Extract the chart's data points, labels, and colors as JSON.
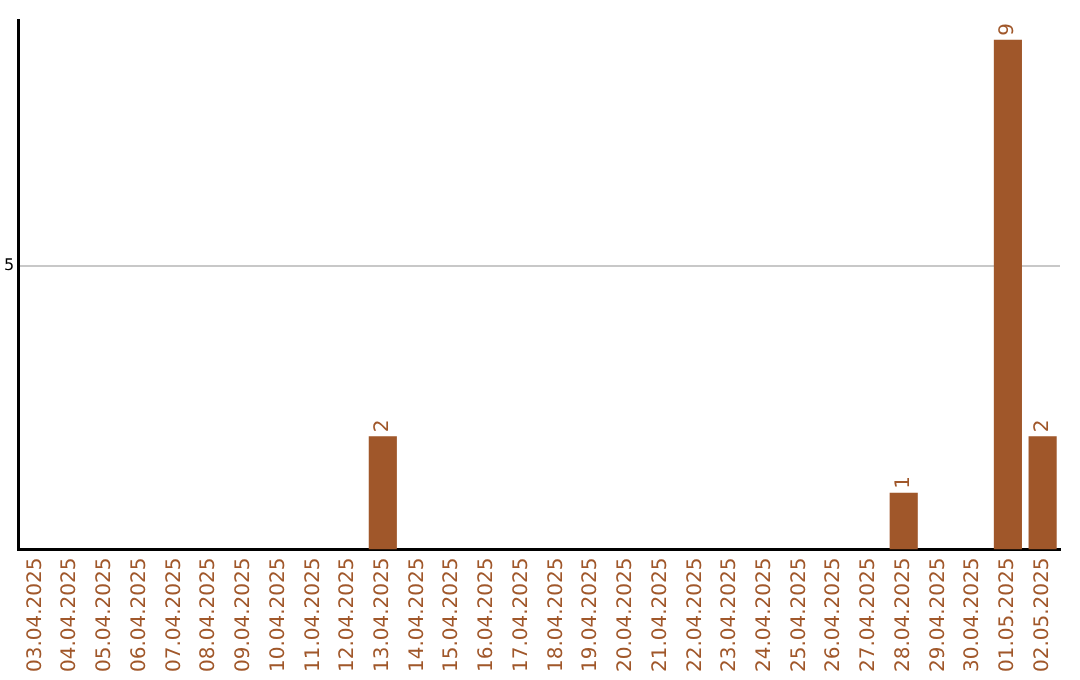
{
  "chart_data": {
    "type": "bar",
    "categories": [
      "03.04.2025",
      "04.04.2025",
      "05.04.2025",
      "06.04.2025",
      "07.04.2025",
      "08.04.2025",
      "09.04.2025",
      "10.04.2025",
      "11.04.2025",
      "12.04.2025",
      "13.04.2025",
      "14.04.2025",
      "15.04.2025",
      "16.04.2025",
      "17.04.2025",
      "18.04.2025",
      "19.04.2025",
      "20.04.2025",
      "21.04.2025",
      "22.04.2025",
      "23.04.2025",
      "24.04.2025",
      "25.04.2025",
      "26.04.2025",
      "27.04.2025",
      "28.04.2025",
      "29.04.2025",
      "30.04.2025",
      "01.05.2025",
      "02.05.2025"
    ],
    "values": [
      0,
      0,
      0,
      0,
      0,
      0,
      0,
      0,
      0,
      0,
      2,
      0,
      0,
      0,
      0,
      0,
      0,
      0,
      0,
      0,
      0,
      0,
      0,
      0,
      0,
      1,
      0,
      0,
      9,
      2
    ],
    "value_labels": [
      null,
      null,
      null,
      null,
      null,
      null,
      null,
      null,
      null,
      null,
      "2",
      null,
      null,
      null,
      null,
      null,
      null,
      null,
      null,
      null,
      null,
      null,
      null,
      null,
      null,
      "1",
      null,
      null,
      "9",
      "2"
    ],
    "color": "#a0572a",
    "ylim": [
      0,
      9.35
    ],
    "yticks": [
      5
    ],
    "grid": "y",
    "legend": false
  }
}
